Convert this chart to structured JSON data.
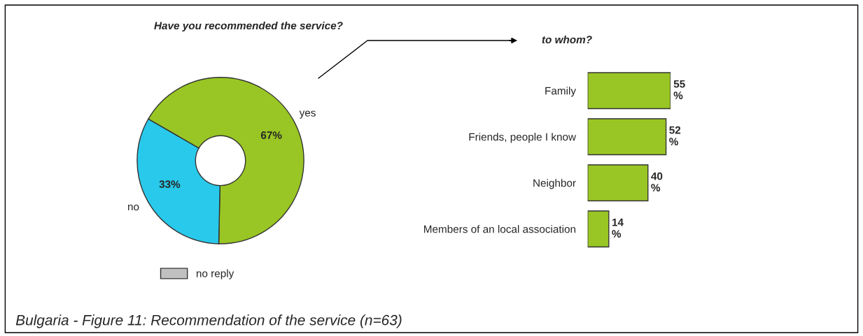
{
  "chart_data": [
    {
      "type": "donut",
      "title": "Have you recommended the service?",
      "categories": [
        "yes",
        "no",
        "no reply"
      ],
      "values": [
        67,
        33,
        0
      ],
      "colors": [
        "#99c624",
        "#29c9eb",
        "#c0c0c0"
      ],
      "value_labels": [
        "67%",
        "33%",
        null
      ],
      "legend": "bottom",
      "annotations": [
        "Bulgaria - Figure 11: Recommendation of the service (n=63)"
      ]
    },
    {
      "type": "bar",
      "orientation": "horizontal",
      "title": "to whom?",
      "categories": [
        "Family",
        "Friends, people I know",
        "Neighbor",
        "Members of an local association"
      ],
      "values": [
        55,
        52,
        40,
        14
      ],
      "color": "#99c624",
      "value_labels": [
        "55\n%",
        "52\n%",
        "40\n%",
        "14\n%"
      ]
    }
  ]
}
